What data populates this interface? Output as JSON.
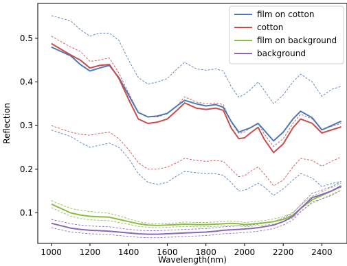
{
  "chart_data": {
    "type": "line",
    "xlabel": "Wavelength(nm)",
    "ylabel": "Reflection",
    "xlim": [
      930,
      2530
    ],
    "ylim": [
      0.03,
      0.58
    ],
    "x_ticks": [
      1000,
      1200,
      1400,
      1600,
      1800,
      2000,
      2200,
      2400
    ],
    "x_tick_labels": [
      "1000",
      "1200",
      "1400",
      "1600",
      "1800",
      "2000",
      "2200",
      "2400"
    ],
    "y_ticks": [
      0.1,
      0.2,
      0.3,
      0.4,
      0.5
    ],
    "y_tick_labels": [
      "0.1",
      "0.2",
      "0.3",
      "0.4",
      "0.5"
    ],
    "grid": false,
    "legend_placement": "top-right",
    "x": [
      1000,
      1100,
      1150,
      1200,
      1250,
      1300,
      1350,
      1400,
      1450,
      1500,
      1550,
      1600,
      1650,
      1690,
      1750,
      1800,
      1850,
      1890,
      1930,
      1970,
      2000,
      2030,
      2070,
      2100,
      2150,
      2200,
      2250,
      2290,
      2350,
      2400,
      2450,
      2500
    ],
    "series": [
      {
        "name": "film on cotton",
        "color": "#4a78b5",
        "values": [
          0.48,
          0.46,
          0.44,
          0.425,
          0.432,
          0.438,
          0.41,
          0.37,
          0.33,
          0.32,
          0.322,
          0.328,
          0.345,
          0.358,
          0.35,
          0.345,
          0.348,
          0.342,
          0.31,
          0.285,
          0.29,
          0.295,
          0.305,
          0.29,
          0.265,
          0.285,
          0.315,
          0.333,
          0.318,
          0.29,
          0.3,
          0.31
        ],
        "band_upper": [
          0.552,
          0.54,
          0.52,
          0.505,
          0.512,
          0.512,
          0.495,
          0.45,
          0.41,
          0.395,
          0.4,
          0.408,
          0.43,
          0.445,
          0.43,
          0.427,
          0.43,
          0.425,
          0.39,
          0.365,
          0.372,
          0.382,
          0.4,
          0.382,
          0.35,
          0.37,
          0.4,
          0.418,
          0.4,
          0.367,
          0.383,
          0.39
        ],
        "band_lower": [
          0.29,
          0.275,
          0.262,
          0.25,
          0.255,
          0.26,
          0.25,
          0.225,
          0.19,
          0.17,
          0.165,
          0.17,
          0.185,
          0.195,
          0.192,
          0.19,
          0.19,
          0.186,
          0.17,
          0.15,
          0.152,
          0.158,
          0.168,
          0.16,
          0.14,
          0.155,
          0.175,
          0.19,
          0.18,
          0.16,
          0.167,
          0.172
        ]
      },
      {
        "name": "cotton",
        "color": "#c84c4c",
        "values": [
          0.488,
          0.462,
          0.45,
          0.432,
          0.438,
          0.44,
          0.408,
          0.36,
          0.315,
          0.305,
          0.308,
          0.315,
          0.335,
          0.352,
          0.34,
          0.337,
          0.34,
          0.335,
          0.295,
          0.27,
          0.272,
          0.283,
          0.296,
          0.27,
          0.238,
          0.258,
          0.295,
          0.315,
          0.305,
          0.283,
          0.29,
          0.297
        ],
        "band_upper": [
          0.505,
          0.48,
          0.47,
          0.447,
          0.45,
          0.455,
          0.42,
          0.375,
          0.33,
          0.32,
          0.32,
          0.327,
          0.345,
          0.366,
          0.354,
          0.35,
          0.352,
          0.348,
          0.308,
          0.282,
          0.285,
          0.296,
          0.306,
          0.282,
          0.252,
          0.27,
          0.305,
          0.326,
          0.315,
          0.292,
          0.298,
          0.305
        ],
        "band_lower": [
          0.3,
          0.285,
          0.28,
          0.278,
          0.282,
          0.285,
          0.27,
          0.245,
          0.215,
          0.2,
          0.2,
          0.205,
          0.215,
          0.225,
          0.22,
          0.218,
          0.22,
          0.218,
          0.2,
          0.183,
          0.185,
          0.195,
          0.205,
          0.19,
          0.162,
          0.175,
          0.205,
          0.225,
          0.22,
          0.207,
          0.218,
          0.228
        ]
      },
      {
        "name": "film on background",
        "color": "#8bbb45",
        "values": [
          0.12,
          0.1,
          0.095,
          0.092,
          0.091,
          0.09,
          0.085,
          0.08,
          0.075,
          0.072,
          0.071,
          0.072,
          0.073,
          0.074,
          0.073,
          0.073,
          0.074,
          0.075,
          0.076,
          0.075,
          0.073,
          0.074,
          0.076,
          0.077,
          0.08,
          0.085,
          0.095,
          0.11,
          0.13,
          0.14,
          0.15,
          0.16
        ],
        "band_upper": [
          0.128,
          0.11,
          0.106,
          0.103,
          0.101,
          0.099,
          0.093,
          0.086,
          0.08,
          0.076,
          0.075,
          0.076,
          0.077,
          0.079,
          0.078,
          0.078,
          0.079,
          0.08,
          0.081,
          0.08,
          0.078,
          0.079,
          0.081,
          0.082,
          0.086,
          0.091,
          0.101,
          0.117,
          0.138,
          0.148,
          0.158,
          0.168
        ],
        "band_lower": [
          0.112,
          0.092,
          0.087,
          0.084,
          0.083,
          0.082,
          0.078,
          0.074,
          0.069,
          0.067,
          0.066,
          0.067,
          0.068,
          0.069,
          0.068,
          0.068,
          0.069,
          0.07,
          0.071,
          0.07,
          0.068,
          0.069,
          0.071,
          0.072,
          0.074,
          0.079,
          0.089,
          0.103,
          0.122,
          0.132,
          0.142,
          0.152
        ]
      },
      {
        "name": "background",
        "color": "#8b66b8",
        "values": [
          0.076,
          0.065,
          0.062,
          0.06,
          0.059,
          0.058,
          0.056,
          0.054,
          0.052,
          0.051,
          0.051,
          0.052,
          0.053,
          0.054,
          0.055,
          0.056,
          0.058,
          0.06,
          0.061,
          0.062,
          0.063,
          0.064,
          0.066,
          0.068,
          0.072,
          0.08,
          0.092,
          0.11,
          0.135,
          0.142,
          0.15,
          0.162
        ],
        "band_upper": [
          0.085,
          0.075,
          0.072,
          0.07,
          0.069,
          0.068,
          0.065,
          0.062,
          0.06,
          0.059,
          0.059,
          0.06,
          0.061,
          0.062,
          0.063,
          0.064,
          0.066,
          0.068,
          0.069,
          0.07,
          0.071,
          0.072,
          0.074,
          0.076,
          0.08,
          0.088,
          0.1,
          0.118,
          0.145,
          0.152,
          0.16,
          0.172
        ],
        "band_lower": [
          0.066,
          0.056,
          0.054,
          0.052,
          0.051,
          0.05,
          0.048,
          0.046,
          0.044,
          0.043,
          0.043,
          0.044,
          0.045,
          0.046,
          0.047,
          0.048,
          0.05,
          0.052,
          0.053,
          0.054,
          0.055,
          0.056,
          0.058,
          0.06,
          0.064,
          0.072,
          0.084,
          0.102,
          0.125,
          0.132,
          0.14,
          0.152
        ]
      }
    ]
  }
}
